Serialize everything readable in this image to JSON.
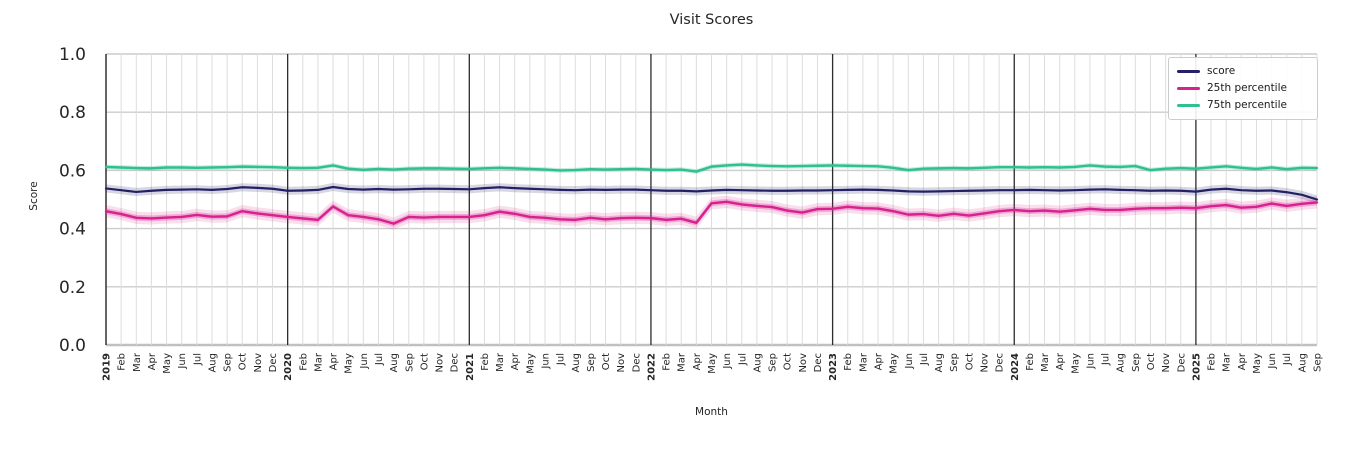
{
  "chart_data": {
    "type": "line",
    "title": "Visit Scores",
    "xlabel": "Month",
    "ylabel": "Score",
    "ylim": [
      0.0,
      1.0
    ],
    "yticks": [
      "0.0",
      "0.2",
      "0.4",
      "0.6",
      "0.8",
      "1.0"
    ],
    "grid": "on",
    "legend_position": "upper right",
    "x_start": "Jan 2019",
    "x_end": "Sep 2025",
    "categories": [
      "2019",
      "Feb",
      "Mar",
      "Apr",
      "May",
      "Jun",
      "Jul",
      "Aug",
      "Sep",
      "Oct",
      "Nov",
      "Dec",
      "2020",
      "Feb",
      "Mar",
      "Apr",
      "May",
      "Jun",
      "Jul",
      "Aug",
      "Sep",
      "Oct",
      "Nov",
      "Dec",
      "2021",
      "Feb",
      "Mar",
      "Apr",
      "May",
      "Jun",
      "Jul",
      "Aug",
      "Sep",
      "Oct",
      "Nov",
      "Dec",
      "2022",
      "Feb",
      "Mar",
      "Apr",
      "May",
      "Jun",
      "Jul",
      "Aug",
      "Sep",
      "Oct",
      "Nov",
      "Dec",
      "2023",
      "Feb",
      "Mar",
      "Apr",
      "May",
      "Jun",
      "Jul",
      "Aug",
      "Sep",
      "Oct",
      "Nov",
      "Dec",
      "2024",
      "Feb",
      "Mar",
      "Apr",
      "May",
      "Jun",
      "Jul",
      "Aug",
      "Sep",
      "Oct",
      "Nov",
      "Dec",
      "2025",
      "Feb",
      "Mar",
      "Apr",
      "May",
      "Jun",
      "Jul",
      "Aug",
      "Sep"
    ],
    "series": [
      {
        "id": "score",
        "label": "score",
        "color": "#232064",
        "line_width": 2.2,
        "bands": [
          {
            "halfwidth": 0.014,
            "opacity": 0.18
          }
        ],
        "values": [
          0.538,
          0.532,
          0.526,
          0.53,
          0.533,
          0.534,
          0.535,
          0.533,
          0.536,
          0.542,
          0.54,
          0.537,
          0.53,
          0.531,
          0.533,
          0.543,
          0.536,
          0.534,
          0.536,
          0.534,
          0.535,
          0.537,
          0.537,
          0.536,
          0.535,
          0.539,
          0.542,
          0.539,
          0.537,
          0.535,
          0.533,
          0.532,
          0.534,
          0.533,
          0.534,
          0.534,
          0.532,
          0.53,
          0.53,
          0.528,
          0.531,
          0.533,
          0.532,
          0.531,
          0.53,
          0.53,
          0.531,
          0.531,
          0.532,
          0.533,
          0.534,
          0.533,
          0.531,
          0.528,
          0.527,
          0.528,
          0.529,
          0.53,
          0.531,
          0.532,
          0.532,
          0.533,
          0.532,
          0.531,
          0.532,
          0.534,
          0.535,
          0.533,
          0.532,
          0.53,
          0.531,
          0.53,
          0.527,
          0.534,
          0.537,
          0.532,
          0.53,
          0.531,
          0.525,
          0.516,
          0.5
        ]
      },
      {
        "id": "p25",
        "label": "25th percentile",
        "color": "#d6218e",
        "line_width": 2.4,
        "bands": [
          {
            "halfwidth": 0.021,
            "opacity": 0.15
          },
          {
            "halfwidth": 0.01,
            "opacity": 0.28
          }
        ],
        "values": [
          0.46,
          0.45,
          0.437,
          0.435,
          0.438,
          0.44,
          0.447,
          0.441,
          0.442,
          0.46,
          0.452,
          0.446,
          0.44,
          0.435,
          0.43,
          0.476,
          0.446,
          0.44,
          0.432,
          0.417,
          0.44,
          0.438,
          0.44,
          0.44,
          0.44,
          0.446,
          0.458,
          0.451,
          0.44,
          0.437,
          0.432,
          0.43,
          0.437,
          0.432,
          0.436,
          0.437,
          0.436,
          0.43,
          0.434,
          0.42,
          0.487,
          0.492,
          0.483,
          0.478,
          0.474,
          0.462,
          0.455,
          0.467,
          0.468,
          0.475,
          0.47,
          0.469,
          0.46,
          0.448,
          0.45,
          0.444,
          0.451,
          0.445,
          0.452,
          0.46,
          0.464,
          0.46,
          0.462,
          0.458,
          0.463,
          0.468,
          0.464,
          0.464,
          0.468,
          0.47,
          0.47,
          0.472,
          0.47,
          0.477,
          0.481,
          0.472,
          0.475,
          0.486,
          0.478,
          0.485,
          0.49
        ]
      },
      {
        "id": "p75",
        "label": "75th percentile",
        "color": "#2ec08f",
        "line_width": 2.4,
        "bands": [
          {
            "halfwidth": 0.008,
            "opacity": 0.28
          }
        ],
        "values": [
          0.612,
          0.61,
          0.608,
          0.607,
          0.61,
          0.61,
          0.609,
          0.61,
          0.611,
          0.613,
          0.612,
          0.611,
          0.609,
          0.608,
          0.609,
          0.617,
          0.606,
          0.602,
          0.605,
          0.603,
          0.606,
          0.607,
          0.607,
          0.606,
          0.605,
          0.607,
          0.609,
          0.607,
          0.605,
          0.603,
          0.6,
          0.601,
          0.604,
          0.603,
          0.604,
          0.605,
          0.603,
          0.601,
          0.603,
          0.596,
          0.613,
          0.617,
          0.62,
          0.617,
          0.615,
          0.614,
          0.615,
          0.616,
          0.617,
          0.616,
          0.615,
          0.614,
          0.609,
          0.601,
          0.606,
          0.607,
          0.608,
          0.607,
          0.609,
          0.611,
          0.611,
          0.61,
          0.611,
          0.61,
          0.612,
          0.617,
          0.613,
          0.612,
          0.615,
          0.601,
          0.606,
          0.608,
          0.606,
          0.61,
          0.614,
          0.609,
          0.605,
          0.61,
          0.604,
          0.609,
          0.608
        ]
      }
    ],
    "styles": {
      "minor_grid_color": "#dddddd",
      "major_grid_color": "#cccccc",
      "baseline_grid_color": "#c0c0c0",
      "year_line_color": "#2d2d2d",
      "spine_color": "#333333",
      "tick_label_color": "#262626"
    }
  }
}
